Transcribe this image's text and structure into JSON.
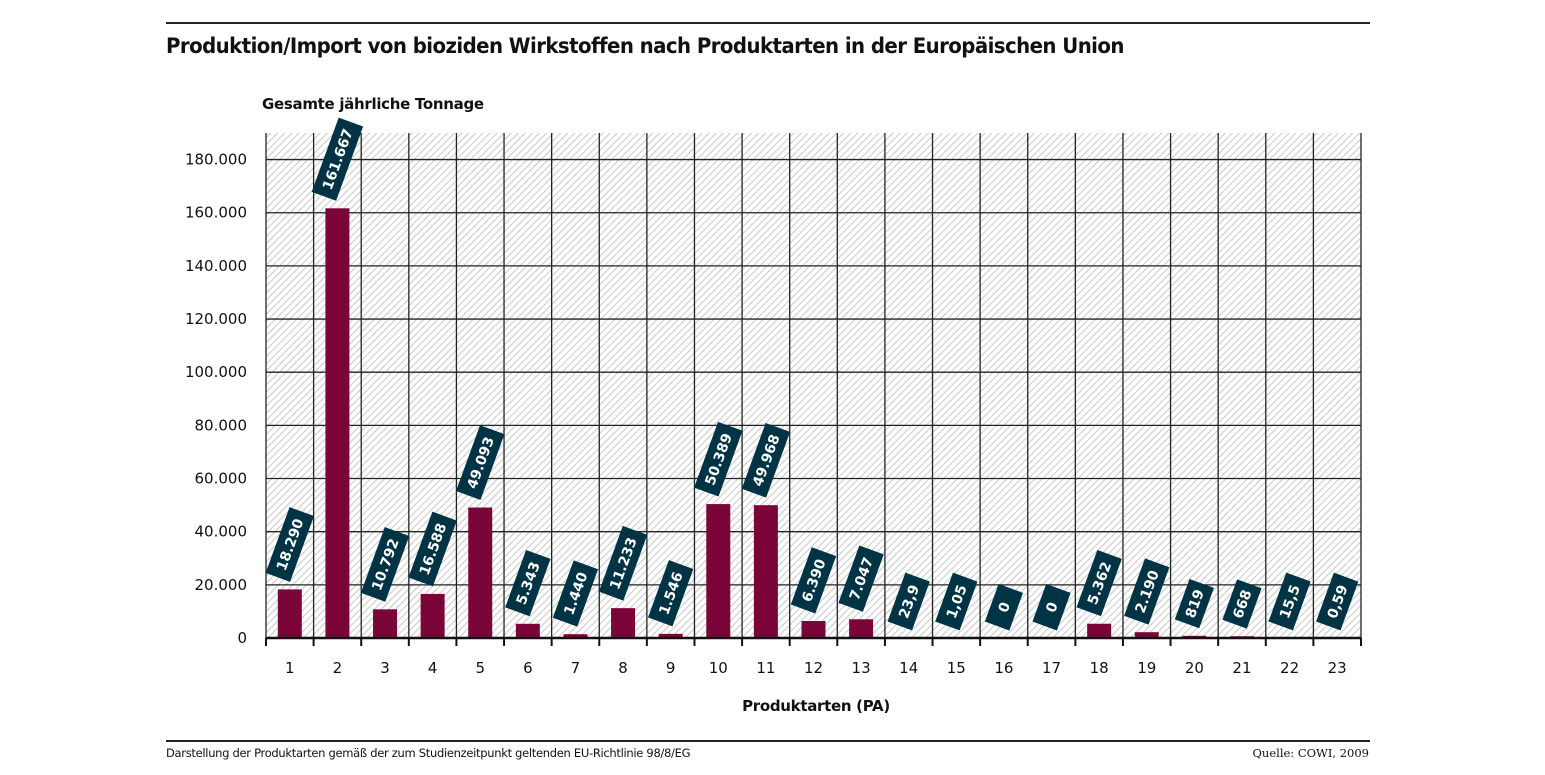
{
  "header": {
    "title": "Produktion/Import von bioziden Wirkstoffen nach Produktarten in der Europäischen Union"
  },
  "footer": {
    "note": "Darstellung der Produktarten gemäß der zum Studienzeitpunkt geltenden EU-Richtlinie 98/8/EG",
    "source": "Quelle: COWI, 2009"
  },
  "colors": {
    "bar": "#7b0539",
    "label_box": "#003344",
    "grid": "#222222",
    "hatch": "#cccccc"
  },
  "chart_data": {
    "type": "bar",
    "title": "Produktion/Import von bioziden Wirkstoffen nach Produktarten in der Europäischen Union",
    "xlabel": "Produktarten (PA)",
    "ylabel": "Gesamte jährliche Tonnage",
    "ylim": [
      0,
      190000
    ],
    "yticks": [
      0,
      20000,
      40000,
      60000,
      80000,
      100000,
      120000,
      140000,
      160000,
      180000
    ],
    "ytick_labels": [
      "0",
      "20.000",
      "40.000",
      "60.000",
      "80.000",
      "100.000",
      "120.000",
      "140.000",
      "160.000",
      "180.000"
    ],
    "grid": true,
    "categories": [
      "1",
      "2",
      "3",
      "4",
      "5",
      "6",
      "7",
      "8",
      "9",
      "10",
      "11",
      "12",
      "13",
      "14",
      "15",
      "16",
      "17",
      "18",
      "19",
      "20",
      "21",
      "22",
      "23"
    ],
    "values": [
      18290,
      161667,
      10792,
      16588,
      49093,
      5343,
      1440,
      11233,
      1546,
      50389,
      49968,
      6390,
      7047,
      23.9,
      1.05,
      0,
      0,
      5362,
      2190,
      819,
      668,
      15.5,
      0.59
    ],
    "value_labels": [
      "18.290",
      "161.667",
      "10.792",
      "16.588",
      "49.093",
      "5.343",
      "1.440",
      "11.233",
      "1.546",
      "50.389",
      "49.968",
      "6.390",
      "7.047",
      "23,9",
      "1,05",
      "0",
      "0",
      "5.362",
      "2.190",
      "819",
      "668",
      "15,5",
      "0,59"
    ]
  }
}
